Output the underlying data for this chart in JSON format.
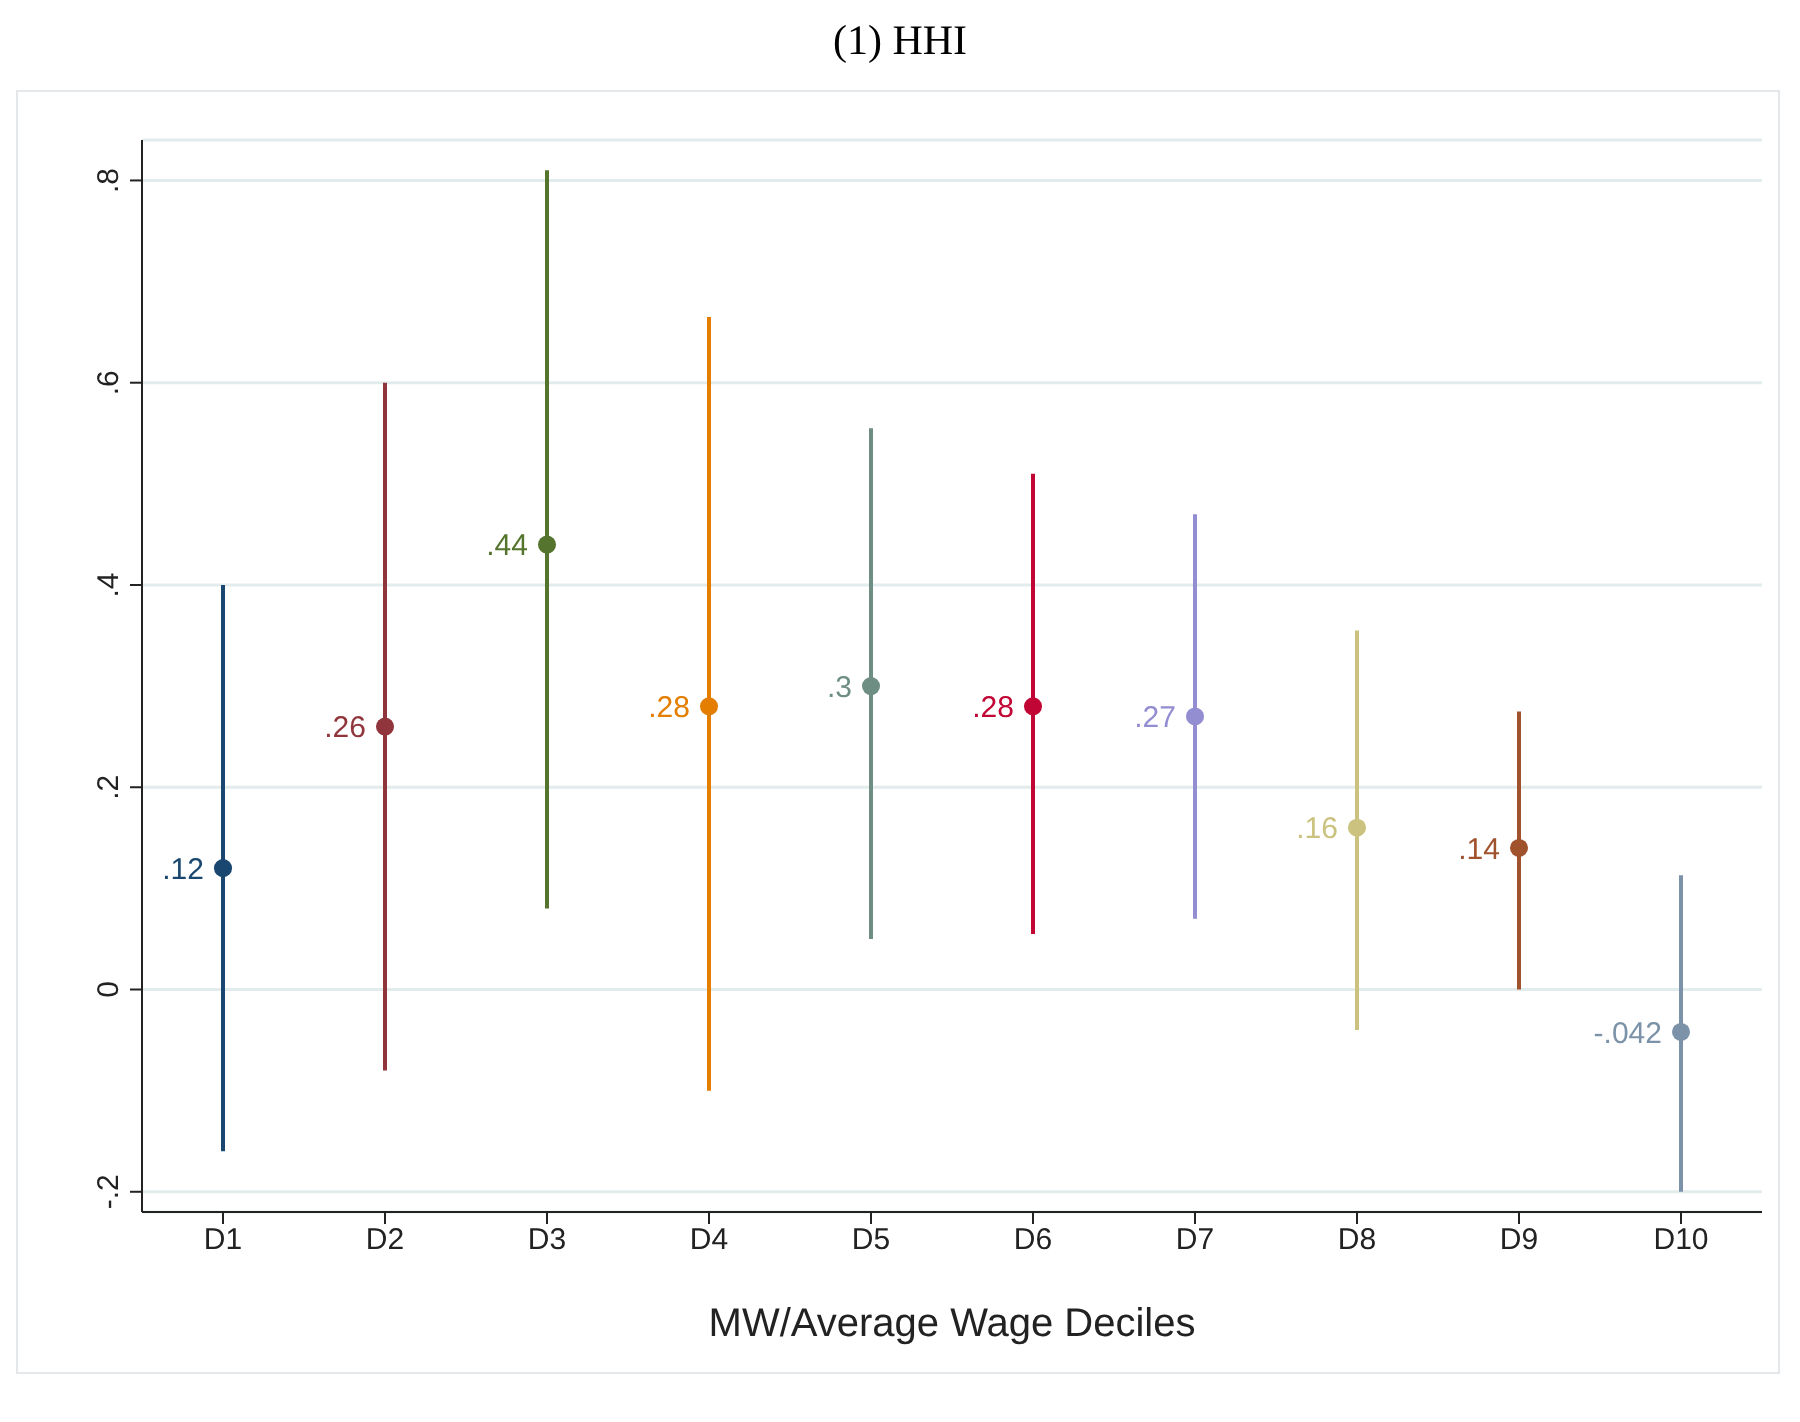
{
  "chart_data": {
    "type": "scatter",
    "title": "(1) HHI",
    "xlabel": "MW/Average Wage Deciles",
    "categories": [
      "D1",
      "D2",
      "D3",
      "D4",
      "D5",
      "D6",
      "D7",
      "D8",
      "D9",
      "D10"
    ],
    "values": [
      0.12,
      0.26,
      0.44,
      0.28,
      0.3,
      0.28,
      0.27,
      0.16,
      0.14,
      -0.042
    ],
    "colors": [
      "#1a476f",
      "#90353b",
      "#55752f",
      "#e37e00",
      "#6e8e84",
      "#c10534",
      "#938dd2",
      "#cac27e",
      "#a0522d",
      "#7b92a8"
    ],
    "errors": [
      [
        -0.16,
        0.4
      ],
      [
        -0.08,
        0.6
      ],
      [
        0.08,
        0.81
      ],
      [
        -0.1,
        0.665
      ],
      [
        0.05,
        0.555
      ],
      [
        0.055,
        0.51
      ],
      [
        0.07,
        0.47
      ],
      [
        -0.04,
        0.355
      ],
      [
        0,
        0.275
      ],
      [
        -0.2,
        0.113
      ]
    ],
    "value_labels": [
      ".12",
      ".26",
      ".44",
      ".28",
      ".3",
      ".28",
      ".27",
      ".16",
      ".14",
      "-.042"
    ],
    "ylim": [
      -0.22,
      0.84
    ],
    "yticks": [
      {
        "value": -0.2,
        "label": "-.2"
      },
      {
        "value": 0,
        "label": "0"
      },
      {
        "value": 0.2,
        "label": ".2"
      },
      {
        "value": 0.4,
        "label": ".4"
      },
      {
        "value": 0.6,
        "label": ".6"
      },
      {
        "value": 0.8,
        "label": ".8"
      }
    ],
    "grid": "y",
    "marker": "circle"
  }
}
